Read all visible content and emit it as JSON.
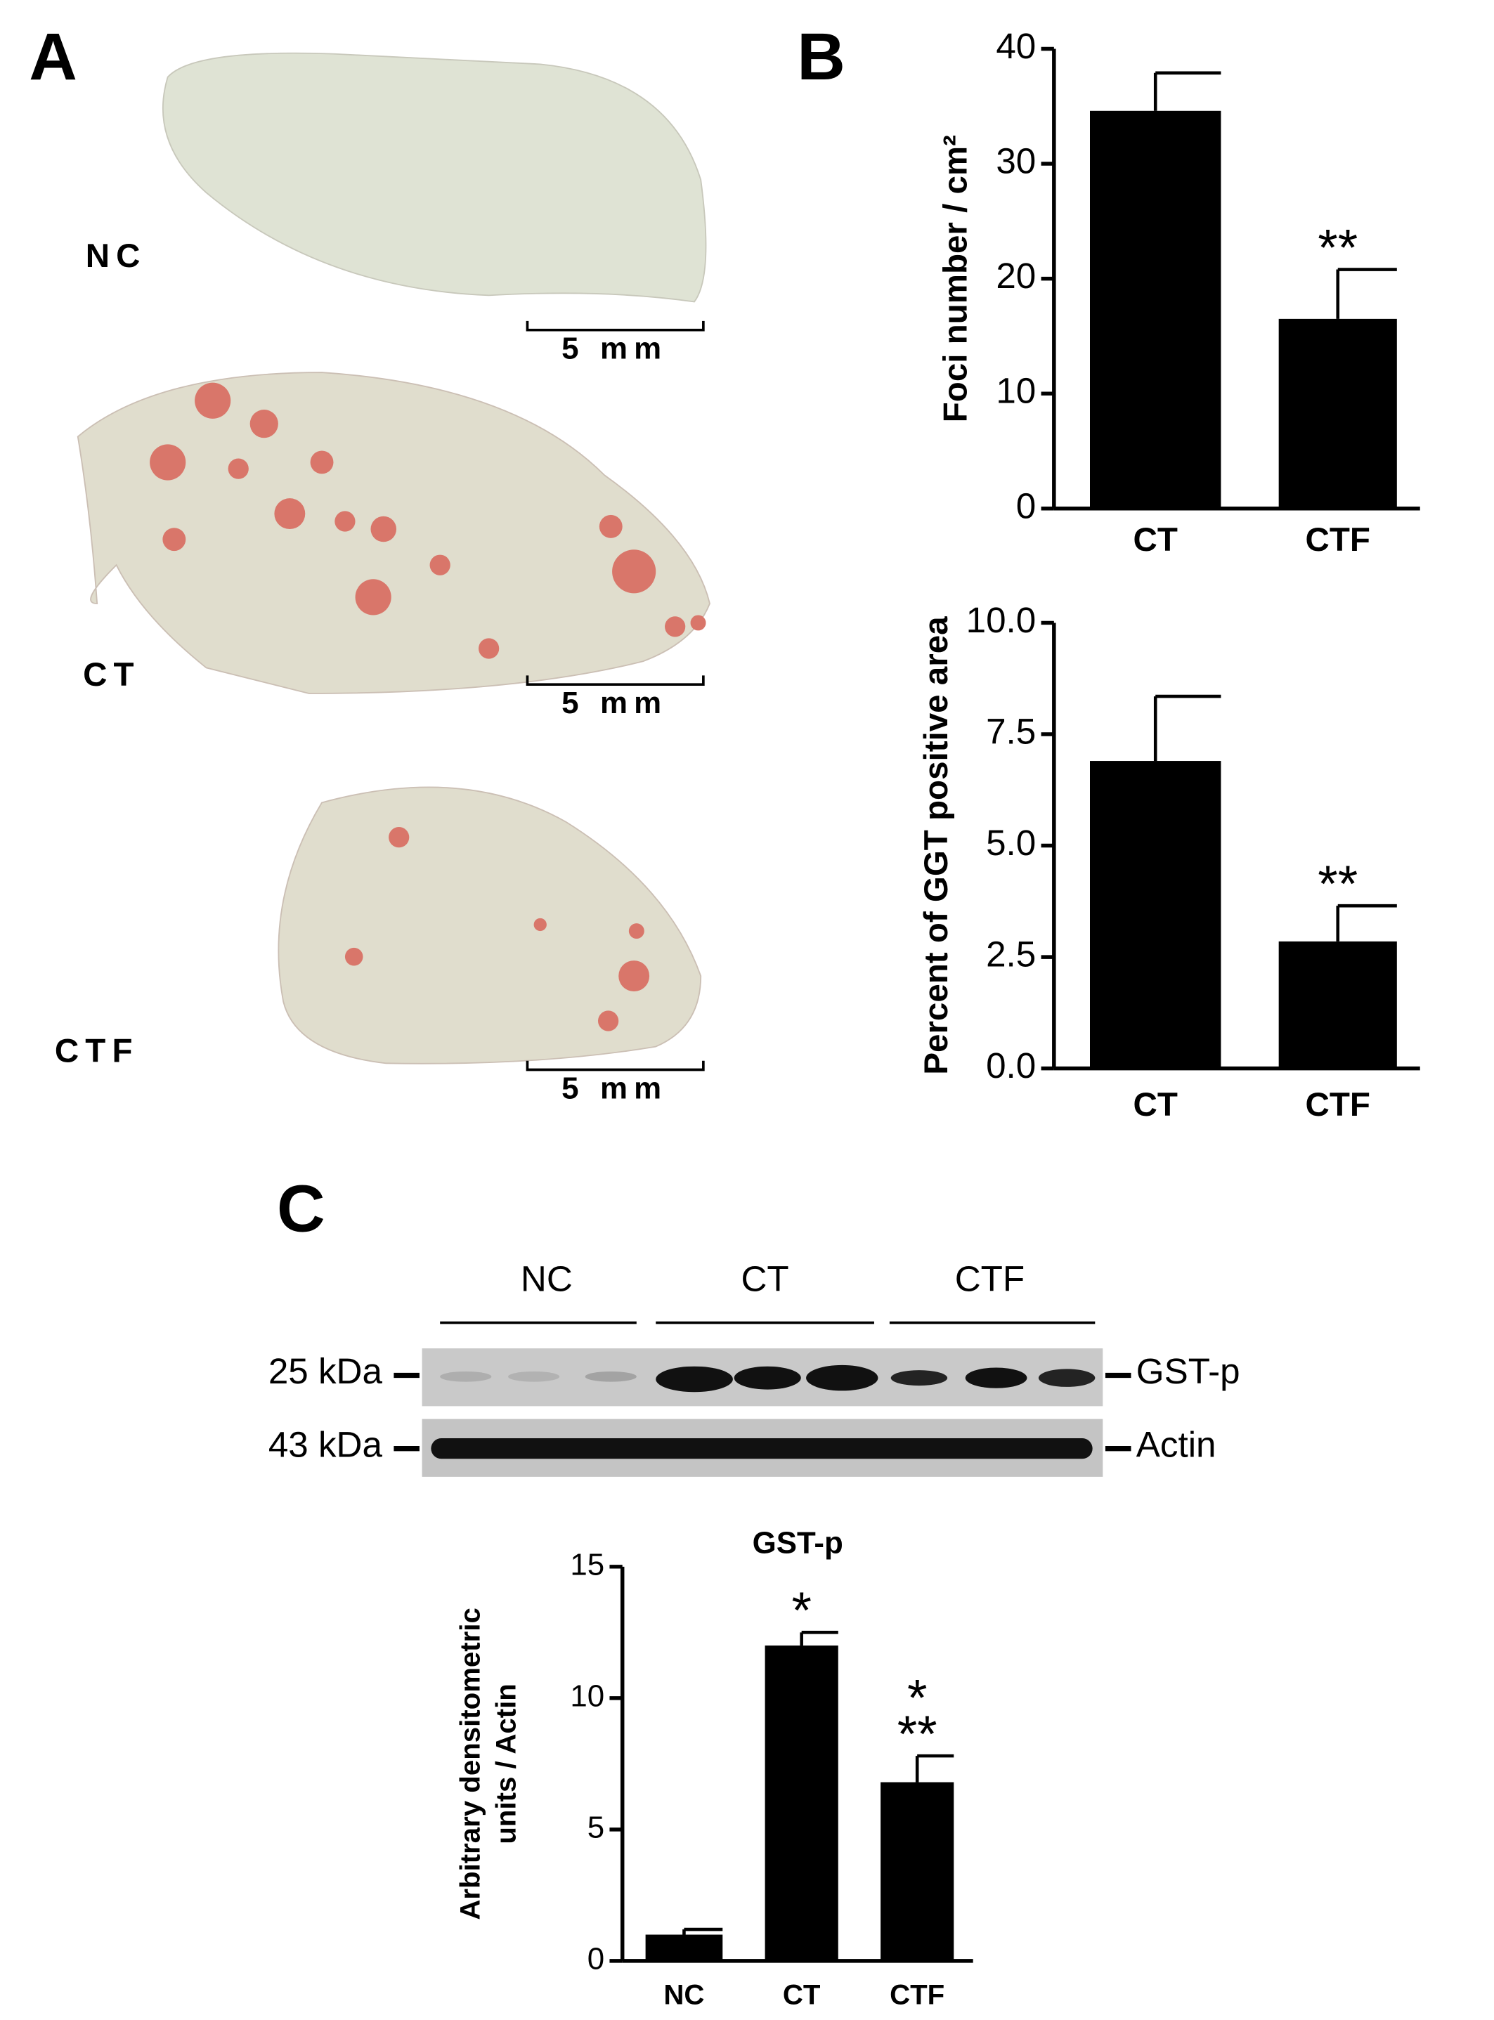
{
  "panel_a": {
    "label": "A",
    "samples": [
      {
        "label": "NC",
        "scale": "5 mm"
      },
      {
        "label": "CT",
        "scale": "5 mm"
      },
      {
        "label": "CTF",
        "scale": "5 mm"
      }
    ]
  },
  "panel_b": {
    "label": "B"
  },
  "panel_c": {
    "label": "C",
    "groups": [
      "NC",
      "CT",
      "CTF"
    ],
    "bands": [
      {
        "size": "25 kDa",
        "protein": "GST-p"
      },
      {
        "size": "43 kDa",
        "protein": "Actin"
      }
    ]
  },
  "chart_data": [
    {
      "type": "bar",
      "ylabel": "Foci number / cm²",
      "categories": [
        "CT",
        "CTF"
      ],
      "values": [
        34.6,
        16.5
      ],
      "errors": [
        3.3,
        4.3
      ],
      "significance": [
        null,
        [
          "**"
        ]
      ],
      "color": "#000000",
      "ylim": [
        0,
        40
      ],
      "yticks": [
        0,
        10,
        20,
        30,
        40
      ]
    },
    {
      "type": "bar",
      "ylabel": "Percent of GGT positive area",
      "categories": [
        "CT",
        "CTF"
      ],
      "values": [
        6.9,
        2.85
      ],
      "errors": [
        1.45,
        0.8
      ],
      "significance": [
        null,
        [
          "**"
        ]
      ],
      "color": "#000000",
      "ylim": [
        0,
        10
      ],
      "yticks": [
        {
          "value": 0,
          "label": "0.0"
        },
        2.5,
        {
          "value": 5,
          "label": "5.0"
        },
        7.5,
        {
          "value": 10,
          "label": "10.0"
        }
      ]
    },
    {
      "type": "bar",
      "title": "GST-p",
      "ylabel": [
        "Arbitrary densitometric",
        "units / Actin"
      ],
      "categories": [
        "NC",
        "CT",
        "CTF"
      ],
      "values": [
        1.0,
        12.0,
        6.8
      ],
      "errors": [
        0.2,
        0.5,
        1.0
      ],
      "significance": [
        null,
        [
          "*"
        ],
        [
          "*",
          "**"
        ]
      ],
      "color": "#000000",
      "ylim": [
        0,
        15
      ],
      "yticks": [
        0,
        5,
        10,
        15
      ]
    }
  ]
}
